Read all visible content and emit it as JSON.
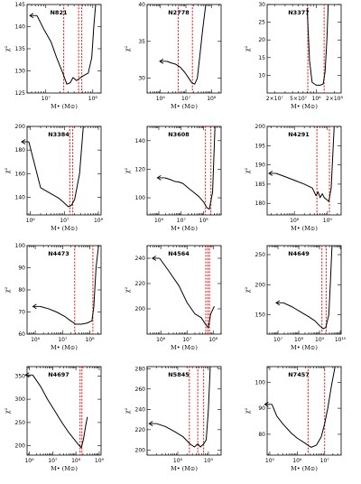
{
  "figure": {
    "xlabel": "M• (M⊙)",
    "ylabel": "χ²",
    "frame_color": "#000000",
    "curve_color": "#000000",
    "marker_color": "#e8272a"
  },
  "chart_data": [
    {
      "type": "line",
      "title": "N821",
      "xscale": "log",
      "xlim": [
        4000000.0,
        150000000.0
      ],
      "ylim": [
        125,
        145
      ],
      "xticks": [
        10000000.0,
        100000000.0
      ],
      "xtick_labels": [
        "10⁷",
        "10⁸"
      ],
      "yticks": [
        125,
        130,
        135,
        140,
        145
      ],
      "ytick_labels": [
        "125",
        "130",
        "135",
        "140",
        "145"
      ],
      "x": [
        6500000.0,
        9000000.0,
        13000000.0,
        17000000.0,
        23000000.0,
        28000000.0,
        33000000.0,
        38000000.0,
        45000000.0,
        55000000.0,
        65000000.0,
        80000000.0,
        95000000.0,
        105000000.0,
        115000000.0
      ],
      "y": [
        142.5,
        139.5,
        136.5,
        133,
        129.5,
        127,
        127.3,
        128.5,
        127.8,
        128.5,
        129,
        129.5,
        133,
        140,
        145
      ],
      "arrow": {
        "x": 6500000.0,
        "y": 142.5,
        "direction": "left"
      },
      "vlines": [
        24000000.0,
        50000000.0,
        58000000.0
      ]
    },
    {
      "type": "line",
      "title": "N2778",
      "xscale": "log",
      "xlim": [
        300000.0,
        240000000.0
      ],
      "ylim": [
        28,
        40
      ],
      "xticks": [
        1000000.0,
        10000000.0,
        100000000.0
      ],
      "xtick_labels": [
        "10⁶",
        "10⁷",
        "10⁸"
      ],
      "yticks": [
        30,
        35,
        40
      ],
      "ytick_labels": [
        "30",
        "35",
        "40"
      ],
      "x": [
        1800000.0,
        2500000.0,
        4000000.0,
        6000000.0,
        9000000.0,
        13000000.0,
        17000000.0,
        22000000.0,
        28000000.0,
        35000000.0,
        45000000.0,
        60000000.0
      ],
      "y": [
        32.3,
        32.1,
        31.9,
        31.5,
        30.8,
        30,
        29.4,
        29.2,
        30,
        33,
        36.5,
        40
      ],
      "arrow": {
        "x": 1800000.0,
        "y": 32.3,
        "direction": "left"
      },
      "vlines": [
        5000000.0,
        18000000.0
      ]
    },
    {
      "type": "line",
      "title": "N3377",
      "xscale": "log",
      "xlim": [
        15000000.0,
        260000000.0
      ],
      "ylim": [
        5,
        30
      ],
      "xticks": [
        20000000.0,
        50000000.0,
        100000000.0,
        200000000.0
      ],
      "xtick_labels": [
        "2×10⁷",
        "5×10⁷",
        "10⁸",
        "2×10⁸"
      ],
      "yticks": [
        10,
        15,
        20,
        25,
        30
      ],
      "ytick_labels": [
        "10",
        "15",
        "20",
        "25",
        "30"
      ],
      "x": [
        70000000.0,
        77000000.0,
        85000000.0,
        100000000.0,
        115000000.0,
        130000000.0,
        140000000.0,
        150000000.0,
        158000000.0
      ],
      "y": [
        29,
        14,
        8,
        7.2,
        7.2,
        7.5,
        11,
        20,
        30
      ],
      "arrow": null,
      "vlines": [
        72000000.0,
        135000000.0
      ]
    },
    {
      "type": "line",
      "title": "N3384",
      "xscale": "log",
      "xlim": [
        800000.0,
        120000000.0
      ],
      "ylim": [
        125,
        200
      ],
      "xticks": [
        1000000.0,
        10000000.0,
        100000000.0
      ],
      "xtick_labels": [
        "10⁶",
        "10⁷",
        "10⁸"
      ],
      "yticks": [
        140,
        160,
        180,
        200
      ],
      "ytick_labels": [
        "140",
        "160",
        "180",
        "200"
      ],
      "x": [
        900000.0,
        2000000.0,
        4000000.0,
        7000000.0,
        10000000.0,
        13000000.0,
        16000000.0,
        20000000.0,
        28000000.0,
        36000000.0
      ],
      "y": [
        187,
        148,
        143,
        139,
        135,
        132,
        133,
        138,
        160,
        200
      ],
      "arrow": {
        "x": 900000.0,
        "y": 187,
        "direction": "left"
      },
      "vlines": [
        14500000.0,
        17500000.0
      ]
    },
    {
      "type": "line",
      "title": "N3608",
      "xscale": "log",
      "xlim": [
        300000.0,
        600000000.0
      ],
      "ylim": [
        88,
        150
      ],
      "xticks": [
        1000000.0,
        10000000.0,
        100000000.0
      ],
      "xtick_labels": [
        "10⁶",
        "10⁷",
        "10⁸"
      ],
      "yticks": [
        100,
        120,
        140
      ],
      "ytick_labels": [
        "100",
        "120",
        "140"
      ],
      "x": [
        1800000.0,
        3000000.0,
        5000000.0,
        8000000.0,
        12000000.0,
        20000000.0,
        35000000.0,
        60000000.0,
        100000000.0,
        140000000.0,
        180000000.0,
        250000000.0,
        320000000.0
      ],
      "y": [
        114,
        113,
        111.5,
        111,
        110,
        107,
        104,
        101,
        97,
        93,
        92,
        104,
        150
      ],
      "arrow": {
        "x": 1800000.0,
        "y": 114,
        "direction": "left"
      },
      "vlines": [
        120000000.0,
        210000000.0
      ]
    },
    {
      "type": "line",
      "title": "N4291",
      "xscale": "log",
      "xlim": [
        15000000.0,
        2600000000.0
      ],
      "ylim": [
        177,
        200
      ],
      "xticks": [
        100000000.0,
        1000000000.0
      ],
      "xtick_labels": [
        "10⁸",
        "10⁹"
      ],
      "yticks": [
        180,
        185,
        190,
        195,
        200
      ],
      "ytick_labels": [
        "180",
        "185",
        "190",
        "195",
        "200"
      ],
      "x": [
        28000000.0,
        50000000.0,
        100000000.0,
        200000000.0,
        350000000.0,
        450000000.0,
        520000000.0,
        600000000.0,
        700000000.0,
        800000000.0,
        950000000.0,
        1100000000.0,
        1300000000.0,
        1600000000.0
      ],
      "y": [
        187.8,
        187,
        186,
        185,
        184,
        182,
        183,
        181.5,
        182.5,
        181.5,
        181,
        180.5,
        184,
        200
      ],
      "arrow": {
        "x": 28000000.0,
        "y": 187.8,
        "direction": "left"
      },
      "vlines": [
        480000000.0,
        1150000000.0
      ]
    },
    {
      "type": "line",
      "title": "N4473",
      "xscale": "log",
      "xlim": [
        500000.0,
        260000000.0
      ],
      "ylim": [
        60,
        100
      ],
      "xticks": [
        1000000.0,
        10000000.0,
        100000000.0
      ],
      "xtick_labels": [
        "10⁶",
        "10⁷",
        "10⁸"
      ],
      "yticks": [
        60,
        70,
        80,
        90,
        100
      ],
      "ytick_labels": [
        "60",
        "70",
        "80",
        "90",
        "100"
      ],
      "x": [
        1500000.0,
        3000000.0,
        6000000.0,
        12000000.0,
        20000000.0,
        30000000.0,
        50000000.0,
        80000000.0,
        120000000.0,
        140000000.0,
        170000000.0,
        210000000.0
      ],
      "y": [
        72.5,
        71.5,
        70,
        68,
        66,
        64.5,
        64.5,
        65,
        66,
        72,
        90,
        100
      ],
      "arrow": {
        "x": 1500000.0,
        "y": 72.5,
        "direction": "left"
      },
      "vlines": [
        28000000.0,
        130000000.0
      ]
    },
    {
      "type": "line",
      "title": "N4564",
      "xscale": "log",
      "xlim": [
        300000.0,
        200000000.0
      ],
      "ylim": [
        180,
        250
      ],
      "xticks": [
        1000000.0,
        10000000.0,
        100000000.0
      ],
      "xtick_labels": [
        "10⁶",
        "10⁷",
        "10⁸"
      ],
      "yticks": [
        200,
        220,
        240
      ],
      "ytick_labels": [
        "200",
        "220",
        "240"
      ],
      "x": [
        900000.0,
        2000000.0,
        5000000.0,
        10000000.0,
        20000000.0,
        35000000.0,
        50000000.0,
        65000000.0,
        80000000.0,
        110000000.0
      ],
      "y": [
        240,
        230,
        218,
        205,
        196,
        193,
        188,
        185,
        196,
        202
      ],
      "arrow": {
        "x": 900000.0,
        "y": 240,
        "direction": "left"
      },
      "vlines": [
        52000000.0,
        62000000.0,
        72000000.0
      ]
    },
    {
      "type": "line",
      "title": "N4649",
      "xscale": "log",
      "xlim": [
        3000000.0,
        11000000000.0
      ],
      "ylim": [
        118,
        265
      ],
      "xticks": [
        10000000.0,
        100000000.0,
        1000000000.0,
        10000000000.0
      ],
      "xtick_labels": [
        "10⁷",
        "10⁸",
        "10⁹",
        "10¹⁰"
      ],
      "yticks": [
        150,
        200,
        250
      ],
      "ytick_labels": [
        "150",
        "200",
        "250"
      ],
      "x": [
        18000000.0,
        50000000.0,
        120000000.0,
        300000000.0,
        600000000.0,
        1000000000.0,
        1500000000.0,
        2000000000.0,
        2800000000.0,
        3300000000.0,
        4000000000.0
      ],
      "y": [
        170,
        163,
        155,
        147,
        140,
        132,
        127,
        129,
        150,
        200,
        265
      ],
      "arrow": {
        "x": 18000000.0,
        "y": 170,
        "direction": "left"
      },
      "vlines": [
        1300000000.0,
        2100000000.0
      ]
    },
    {
      "type": "line",
      "title": "N4697",
      "xscale": "log",
      "xlim": [
        800000.0,
        1200000000.0
      ],
      "ylim": [
        180,
        370
      ],
      "xticks": [
        1000000.0,
        10000000.0,
        100000000.0,
        1000000000.0
      ],
      "xtick_labels": [
        "10⁶",
        "10⁷",
        "10⁸",
        "10⁹"
      ],
      "yticks": [
        200,
        250,
        300,
        350
      ],
      "ytick_labels": [
        "200",
        "250",
        "300",
        "350"
      ],
      "x": [
        1400000.0,
        3000000.0,
        6000000.0,
        12000000.0,
        25000000.0,
        50000000.0,
        90000000.0,
        130000000.0,
        170000000.0,
        210000000.0,
        260000000.0,
        310000000.0
      ],
      "y": [
        352,
        328,
        300,
        276,
        250,
        228,
        212,
        202,
        196,
        214,
        242,
        262
      ],
      "arrow": {
        "x": 1400000.0,
        "y": 352,
        "direction": "left"
      },
      "vlines": [
        150000000.0,
        180000000.0
      ]
    },
    {
      "type": "line",
      "title": "N5845",
      "xscale": "log",
      "xlim": [
        10000000.0,
        2600000000.0
      ],
      "ylim": [
        195,
        282
      ],
      "xticks": [
        100000000.0,
        1000000000.0
      ],
      "xtick_labels": [
        "10⁸",
        "10⁹"
      ],
      "yticks": [
        200,
        220,
        240,
        260,
        280
      ],
      "ytick_labels": [
        "200",
        "220",
        "240",
        "260",
        "280"
      ],
      "x": [
        20000000.0,
        40000000.0,
        80000000.0,
        150000000.0,
        250000000.0,
        350000000.0,
        450000000.0,
        550000000.0,
        700000000.0,
        850000000.0,
        1000000000.0,
        1150000000.0
      ],
      "y": [
        226,
        223,
        218,
        213,
        206,
        203,
        206,
        203,
        206,
        210,
        240,
        282
      ],
      "arrow": {
        "x": 20000000.0,
        "y": 226,
        "direction": "left"
      },
      "vlines": [
        240000000.0,
        450000000.0,
        700000000.0
      ]
    },
    {
      "type": "line",
      "title": "N7457",
      "xscale": "log",
      "xlim": [
        80000.0,
        40000000.0
      ],
      "ylim": [
        72,
        106
      ],
      "xticks": [
        100000.0,
        1000000.0,
        10000000.0
      ],
      "xtick_labels": [
        "10⁵",
        "10⁶",
        "10⁷"
      ],
      "yticks": [
        80,
        90,
        100
      ],
      "ytick_labels": [
        "80",
        "90",
        "100"
      ],
      "x": [
        120000.0,
        180000.0,
        300000.0,
        600000.0,
        1000000.0,
        2000000.0,
        3200000.0,
        5000000.0,
        7500000.0,
        10000000.0,
        13000000.0,
        18000000.0,
        24000000.0
      ],
      "y": [
        91.5,
        87,
        84,
        80.5,
        78.5,
        76.5,
        75,
        75.8,
        79,
        84,
        90,
        99,
        106
      ],
      "arrow": {
        "x": 120000.0,
        "y": 91.5,
        "direction": "left"
      },
      "vlines": [
        2500000.0,
        10000000.0
      ]
    }
  ]
}
